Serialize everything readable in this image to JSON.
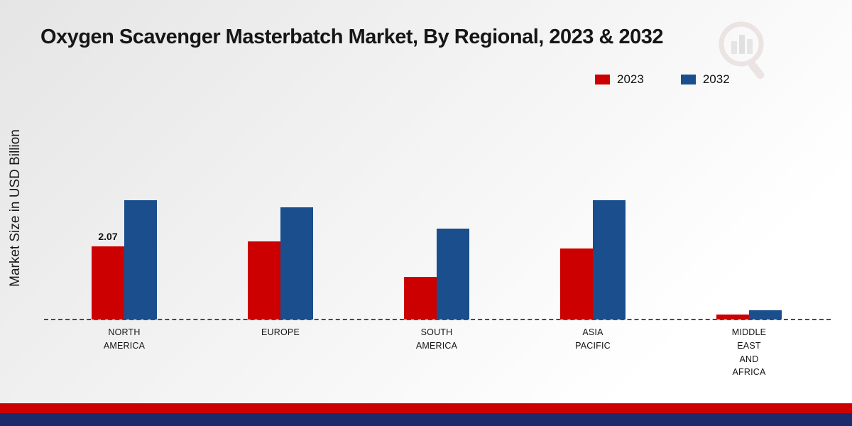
{
  "title": "Oxygen Scavenger Masterbatch Market, By Regional, 2023 & 2032",
  "ylabel": "Market Size in USD Billion",
  "legend": {
    "items": [
      {
        "label": "2023",
        "color": "#cc0000"
      },
      {
        "label": "2032",
        "color": "#1a4e8c"
      }
    ],
    "position": "top-right"
  },
  "chart_data": {
    "type": "bar",
    "categories": [
      "NORTH\nAMERICA",
      "EUROPE",
      "SOUTH\nAMERICA",
      "ASIA\nPACIFIC",
      "MIDDLE\nEAST\nAND\nAFRICA"
    ],
    "series": [
      {
        "name": "2023",
        "color": "#cc0000",
        "values": [
          2.07,
          2.2,
          1.2,
          2.0,
          0.15
        ]
      },
      {
        "name": "2032",
        "color": "#1a4e8c",
        "values": [
          3.35,
          3.15,
          2.55,
          3.35,
          0.25
        ]
      }
    ],
    "annotations": [
      {
        "category": 0,
        "series": 0,
        "text": "2.07"
      }
    ],
    "title": "Oxygen Scavenger Masterbatch Market, By Regional, 2023 & 2032",
    "xlabel": "",
    "ylabel": "Market Size in USD Billion",
    "ylim": [
      0,
      6
    ],
    "grid": false,
    "legend_position": "top-right",
    "baseline_style": "dashed"
  },
  "footer": {
    "red_strip_color": "#cc0000",
    "navy_strip_color": "#1b2a6b"
  },
  "watermark_icon": "magnifier-bar-chart-logo"
}
